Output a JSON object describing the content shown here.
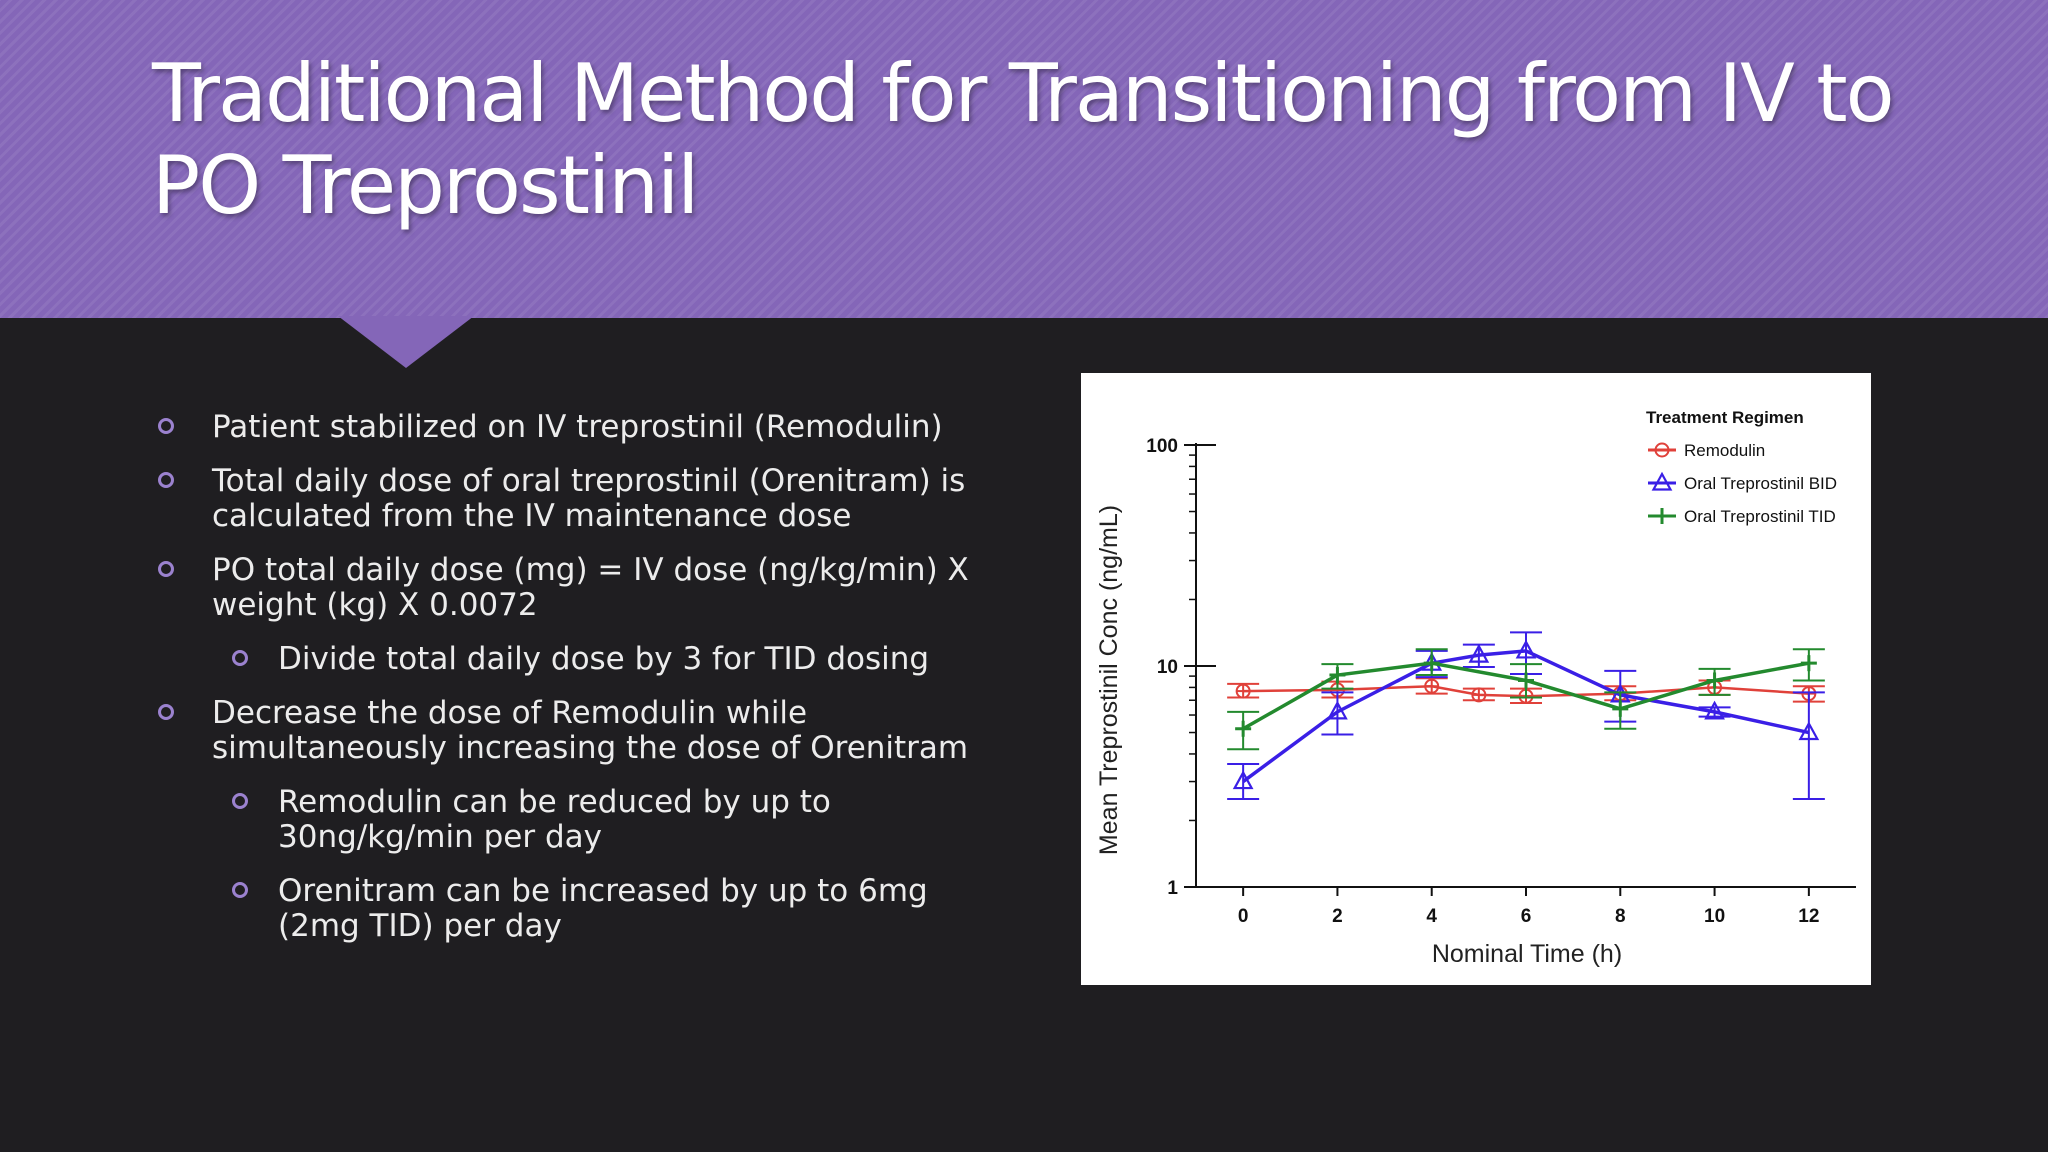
{
  "slide": {
    "title": "Traditional Method for Transitioning from IV to PO Treprostinil",
    "bullets": [
      {
        "level": 1,
        "text": "Patient stabilized on IV treprostinil (Remodulin)"
      },
      {
        "level": 1,
        "text": "Total daily dose of oral treprostinil (Orenitram) is calculated from the IV maintenance dose"
      },
      {
        "level": 1,
        "text": "PO total daily dose (mg) = IV dose (ng/kg/min) X weight (kg) X 0.0072"
      },
      {
        "level": 2,
        "text": "Divide total daily dose by 3 for TID dosing"
      },
      {
        "level": 1,
        "text": "Decrease the dose of Remodulin while simultaneously increasing the dose of Orenitram"
      },
      {
        "level": 2,
        "text": "Remodulin can be reduced by up to 30ng/kg/min per day"
      },
      {
        "level": 2,
        "text": "Orenitram can be increased by up to 6mg (2mg TID) per day"
      }
    ]
  },
  "colors": {
    "header": "#8466b8",
    "background": "#1f1e21",
    "bullet_marker": "#9b82cf",
    "remodulin": "#e0413a",
    "bid": "#3a1fe6",
    "tid": "#238a2e"
  },
  "chart_data": {
    "type": "line",
    "xlabel": "Nominal Time (h)",
    "ylabel": "Mean Treprostinil Conc (ng/mL)",
    "y_scale": "log",
    "ylim": [
      1,
      100
    ],
    "xlim": [
      -1,
      13
    ],
    "x_ticks": [
      0,
      2,
      4,
      6,
      8,
      10,
      12
    ],
    "y_ticks": [
      1,
      10,
      100
    ],
    "legend_title": "Treatment Regimen",
    "legend_position": "top-right",
    "grid": false,
    "series": [
      {
        "name": "Remodulin",
        "marker": "circle",
        "color": "#e0413a",
        "x": [
          0,
          2,
          4,
          5,
          6,
          8,
          10,
          12
        ],
        "y": [
          7.7,
          7.8,
          8.1,
          7.4,
          7.3,
          7.5,
          8.0,
          7.5
        ],
        "err_low": [
          7.2,
          7.2,
          7.5,
          7.0,
          6.8,
          7.0,
          7.4,
          6.9
        ],
        "err_high": [
          8.3,
          8.5,
          8.8,
          7.9,
          7.9,
          8.1,
          8.6,
          8.1
        ]
      },
      {
        "name": "Oral Treprostinil BID",
        "marker": "triangle",
        "color": "#3a1fe6",
        "x": [
          0,
          2,
          4,
          5,
          6,
          8,
          10,
          12
        ],
        "y": [
          3.0,
          6.2,
          10.3,
          11.2,
          11.7,
          7.4,
          6.2,
          5.0
        ],
        "err_low": [
          2.5,
          4.9,
          8.9,
          9.9,
          9.2,
          5.6,
          5.9,
          2.5
        ],
        "err_high": [
          3.6,
          7.6,
          11.7,
          12.5,
          14.2,
          9.5,
          6.5,
          7.6
        ]
      },
      {
        "name": "Oral Treprostinil TID",
        "marker": "plus",
        "color": "#238a2e",
        "x": [
          0,
          2,
          4,
          6,
          8,
          10,
          12
        ],
        "y": [
          5.2,
          9.1,
          10.3,
          8.6,
          6.4,
          8.6,
          10.3
        ],
        "err_low": [
          4.2,
          7.9,
          9.1,
          7.2,
          5.2,
          7.4,
          8.6
        ],
        "err_high": [
          6.2,
          10.2,
          11.9,
          10.2,
          7.6,
          9.7,
          11.9
        ]
      }
    ]
  }
}
